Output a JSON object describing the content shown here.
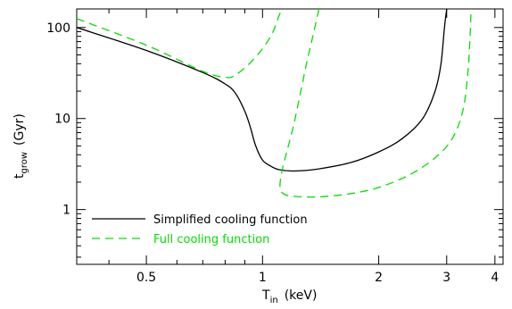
{
  "chart_data": {
    "type": "line",
    "xlabel": {
      "main": "T",
      "sub": "in",
      "unit": "(keV)"
    },
    "ylabel": {
      "main": "t",
      "sub": "grow",
      "unit": "(Gyr)"
    },
    "x_scale": "log",
    "y_scale": "log",
    "xlim": [
      0.33,
      4.2
    ],
    "ylim": [
      0.25,
      160
    ],
    "x_ticks": [
      {
        "value": 0.5,
        "label": "0.5"
      },
      {
        "value": 1,
        "label": "1"
      },
      {
        "value": 2,
        "label": "2"
      },
      {
        "value": 3,
        "label": "3"
      },
      {
        "value": 4,
        "label": "4"
      }
    ],
    "y_ticks": [
      {
        "value": 1,
        "label": "1"
      },
      {
        "value": 10,
        "label": "10"
      },
      {
        "value": 100,
        "label": "100"
      }
    ],
    "grid": false,
    "legend_position": "bottom-left",
    "series": [
      {
        "name": "Simplified cooling function",
        "color": "#000000",
        "dash": "solid",
        "segments": [
          [
            [
              0.33,
              100
            ],
            [
              0.5,
              56
            ],
            [
              0.7,
              32
            ],
            [
              0.8,
              24
            ],
            [
              0.85,
              19
            ],
            [
              0.9,
              12
            ],
            [
              0.93,
              8
            ],
            [
              0.96,
              5
            ],
            [
              1.0,
              3.5
            ],
            [
              1.05,
              3.0
            ],
            [
              1.1,
              2.75
            ],
            [
              1.2,
              2.65
            ],
            [
              1.4,
              2.8
            ],
            [
              1.7,
              3.3
            ],
            [
              2.0,
              4.3
            ],
            [
              2.3,
              6
            ],
            [
              2.6,
              10
            ],
            [
              2.8,
              20
            ],
            [
              2.9,
              40
            ],
            [
              2.96,
              100
            ],
            [
              3.0,
              160
            ]
          ]
        ]
      },
      {
        "name": "Full cooling function",
        "color": "#00e000",
        "dash": "dashed",
        "segments": [
          [
            [
              0.33,
              125
            ],
            [
              0.5,
              64
            ],
            [
              0.7,
              33
            ],
            [
              0.8,
              28.5
            ],
            [
              0.85,
              30
            ],
            [
              0.95,
              45
            ],
            [
              1.05,
              80
            ],
            [
              1.1,
              130
            ],
            [
              1.12,
              160
            ]
          ],
          [
            [
              1.4,
              160
            ],
            [
              1.35,
              80
            ],
            [
              1.3,
              40
            ],
            [
              1.25,
              18
            ],
            [
              1.2,
              8
            ],
            [
              1.15,
              4
            ],
            [
              1.12,
              2.5
            ],
            [
              1.11,
              1.8
            ],
            [
              1.13,
              1.5
            ],
            [
              1.2,
              1.4
            ],
            [
              1.4,
              1.38
            ],
            [
              1.7,
              1.5
            ],
            [
              2.0,
              1.75
            ],
            [
              2.4,
              2.4
            ],
            [
              2.8,
              3.7
            ],
            [
              3.1,
              6
            ],
            [
              3.3,
              12
            ],
            [
              3.4,
              30
            ],
            [
              3.45,
              80
            ],
            [
              3.47,
              160
            ]
          ]
        ]
      }
    ]
  }
}
